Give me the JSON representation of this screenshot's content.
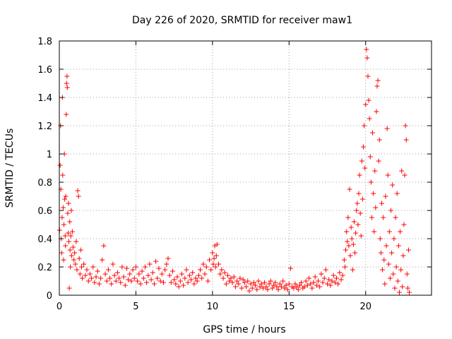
{
  "chart_data": {
    "type": "scatter",
    "title": "Day 226 of 2020, SRMTID for receiver maw1",
    "xlabel": "GPS time / hours",
    "ylabel": "SRMTID / TECUs",
    "xlim": [
      0,
      24.3
    ],
    "ylim": [
      0,
      1.8
    ],
    "xticks": [
      0,
      5,
      10,
      15,
      20
    ],
    "xtick_labels": [
      "0",
      "5",
      "10",
      "15",
      "20"
    ],
    "yticks": [
      0,
      0.2,
      0.4,
      0.6,
      0.8,
      1.0,
      1.2,
      1.4,
      1.6,
      1.8
    ],
    "ytick_labels": [
      "0",
      "0.2",
      "0.4",
      "0.6",
      "0.8",
      "1",
      "1.2",
      "1.4",
      "1.6",
      "1.8"
    ],
    "grid": true,
    "marker": "+",
    "color": "#ff0000",
    "series": [
      {
        "name": "maw1",
        "points": [
          [
            0.02,
            0.46
          ],
          [
            0.05,
            0.92
          ],
          [
            0.08,
            1.2
          ],
          [
            0.1,
            0.75
          ],
          [
            0.12,
            0.4
          ],
          [
            0.15,
            0.3
          ],
          [
            0.18,
            0.55
          ],
          [
            0.2,
            1.4
          ],
          [
            0.22,
            0.85
          ],
          [
            0.25,
            0.62
          ],
          [
            0.28,
            0.25
          ],
          [
            0.3,
            0.5
          ],
          [
            0.33,
            1.0
          ],
          [
            0.35,
            0.68
          ],
          [
            0.38,
            0.42
          ],
          [
            0.4,
            0.35
          ],
          [
            0.42,
            0.7
          ],
          [
            0.45,
            1.28
          ],
          [
            0.47,
            1.5
          ],
          [
            0.5,
            1.55
          ],
          [
            0.52,
            1.47
          ],
          [
            0.55,
            0.58
          ],
          [
            0.58,
            0.44
          ],
          [
            0.6,
            0.65
          ],
          [
            0.62,
            0.38
          ],
          [
            0.65,
            0.05
          ],
          [
            0.68,
            0.52
          ],
          [
            0.7,
            0.32
          ],
          [
            0.72,
            0.2
          ],
          [
            0.75,
            0.42
          ],
          [
            0.78,
            0.6
          ],
          [
            0.8,
            0.28
          ],
          [
            0.85,
            0.45
          ],
          [
            0.9,
            0.34
          ],
          [
            0.95,
            0.25
          ],
          [
            1.0,
            0.3
          ],
          [
            1.05,
            0.22
          ],
          [
            1.1,
            0.38
          ],
          [
            1.15,
            0.18
          ],
          [
            1.2,
            0.74
          ],
          [
            1.25,
            0.7
          ],
          [
            1.3,
            0.26
          ],
          [
            1.35,
            0.15
          ],
          [
            1.4,
            0.32
          ],
          [
            1.45,
            0.2
          ],
          [
            1.5,
            0.12
          ],
          [
            1.6,
            0.22
          ],
          [
            1.7,
            0.14
          ],
          [
            1.8,
            0.18
          ],
          [
            1.9,
            0.1
          ],
          [
            2.0,
            0.15
          ],
          [
            2.1,
            0.12
          ],
          [
            2.2,
            0.2
          ],
          [
            2.3,
            0.09
          ],
          [
            2.4,
            0.13
          ],
          [
            2.5,
            0.17
          ],
          [
            2.6,
            0.08
          ],
          [
            2.7,
            0.12
          ],
          [
            2.8,
            0.25
          ],
          [
            2.9,
            0.35
          ],
          [
            3.0,
            0.15
          ],
          [
            3.1,
            0.1
          ],
          [
            3.2,
            0.18
          ],
          [
            3.3,
            0.12
          ],
          [
            3.4,
            0.08
          ],
          [
            3.5,
            0.22
          ],
          [
            3.6,
            0.14
          ],
          [
            3.7,
            0.1
          ],
          [
            3.8,
            0.16
          ],
          [
            3.9,
            0.12
          ],
          [
            4.0,
            0.09
          ],
          [
            4.1,
            0.2
          ],
          [
            4.2,
            0.13
          ],
          [
            4.3,
            0.07
          ],
          [
            4.4,
            0.19
          ],
          [
            4.5,
            0.11
          ],
          [
            4.6,
            0.15
          ],
          [
            4.7,
            0.1
          ],
          [
            4.8,
            0.18
          ],
          [
            4.9,
            0.12
          ],
          [
            5.0,
            0.2
          ],
          [
            5.1,
            0.1
          ],
          [
            5.2,
            0.15
          ],
          [
            5.3,
            0.08
          ],
          [
            5.4,
            0.17
          ],
          [
            5.5,
            0.12
          ],
          [
            5.6,
            0.2
          ],
          [
            5.7,
            0.09
          ],
          [
            5.8,
            0.14
          ],
          [
            5.9,
            0.22
          ],
          [
            6.0,
            0.11
          ],
          [
            6.1,
            0.16
          ],
          [
            6.2,
            0.08
          ],
          [
            6.3,
            0.24
          ],
          [
            6.4,
            0.12
          ],
          [
            6.5,
            0.19
          ],
          [
            6.6,
            0.1
          ],
          [
            6.7,
            0.15
          ],
          [
            6.8,
            0.09
          ],
          [
            6.9,
            0.18
          ],
          [
            7.0,
            0.22
          ],
          [
            7.1,
            0.26
          ],
          [
            7.2,
            0.14
          ],
          [
            7.3,
            0.09
          ],
          [
            7.4,
            0.17
          ],
          [
            7.5,
            0.11
          ],
          [
            7.6,
            0.08
          ],
          [
            7.7,
            0.13
          ],
          [
            7.8,
            0.06
          ],
          [
            7.9,
            0.1
          ],
          [
            8.0,
            0.15
          ],
          [
            8.1,
            0.07
          ],
          [
            8.2,
            0.12
          ],
          [
            8.3,
            0.18
          ],
          [
            8.4,
            0.09
          ],
          [
            8.5,
            0.14
          ],
          [
            8.6,
            0.11
          ],
          [
            8.7,
            0.16
          ],
          [
            8.8,
            0.08
          ],
          [
            8.9,
            0.12
          ],
          [
            9.0,
            0.1
          ],
          [
            9.1,
            0.14
          ],
          [
            9.2,
            0.18
          ],
          [
            9.3,
            0.12
          ],
          [
            9.4,
            0.22
          ],
          [
            9.5,
            0.15
          ],
          [
            9.6,
            0.2
          ],
          [
            9.7,
            0.1
          ],
          [
            9.8,
            0.25
          ],
          [
            9.9,
            0.18
          ],
          [
            10.0,
            0.3
          ],
          [
            10.05,
            0.22
          ],
          [
            10.1,
            0.26
          ],
          [
            10.15,
            0.35
          ],
          [
            10.2,
            0.2
          ],
          [
            10.25,
            0.28
          ],
          [
            10.3,
            0.36
          ],
          [
            10.4,
            0.22
          ],
          [
            10.5,
            0.15
          ],
          [
            10.6,
            0.18
          ],
          [
            10.7,
            0.12
          ],
          [
            10.8,
            0.16
          ],
          [
            10.9,
            0.08
          ],
          [
            11.0,
            0.14
          ],
          [
            11.1,
            0.1
          ],
          [
            11.2,
            0.12
          ],
          [
            11.3,
            0.09
          ],
          [
            11.4,
            0.13
          ],
          [
            11.5,
            0.06
          ],
          [
            11.6,
            0.1
          ],
          [
            11.7,
            0.08
          ],
          [
            11.8,
            0.12
          ],
          [
            11.9,
            0.05
          ],
          [
            12.0,
            0.11
          ],
          [
            12.1,
            0.09
          ],
          [
            12.2,
            0.06
          ],
          [
            12.3,
            0.1
          ],
          [
            12.4,
            0.03
          ],
          [
            12.5,
            0.08
          ],
          [
            12.6,
            0.05
          ],
          [
            12.7,
            0.09
          ],
          [
            12.8,
            0.07
          ],
          [
            12.9,
            0.04
          ],
          [
            13.0,
            0.1
          ],
          [
            13.1,
            0.06
          ],
          [
            13.2,
            0.08
          ],
          [
            13.3,
            0.05
          ],
          [
            13.4,
            0.09
          ],
          [
            13.5,
            0.06
          ],
          [
            13.6,
            0.04
          ],
          [
            13.7,
            0.08
          ],
          [
            13.8,
            0.1
          ],
          [
            13.9,
            0.05
          ],
          [
            14.0,
            0.07
          ],
          [
            14.1,
            0.09
          ],
          [
            14.2,
            0.06
          ],
          [
            14.3,
            0.04
          ],
          [
            14.4,
            0.08
          ],
          [
            14.5,
            0.06
          ],
          [
            14.6,
            0.1
          ],
          [
            14.7,
            0.05
          ],
          [
            14.8,
            0.07
          ],
          [
            14.9,
            0.04
          ],
          [
            15.0,
            0.08
          ],
          [
            15.1,
            0.19
          ],
          [
            15.2,
            0.06
          ],
          [
            15.3,
            0.05
          ],
          [
            15.4,
            0.08
          ],
          [
            15.5,
            0.06
          ],
          [
            15.6,
            0.04
          ],
          [
            15.7,
            0.07
          ],
          [
            15.8,
            0.09
          ],
          [
            15.9,
            0.05
          ],
          [
            16.0,
            0.06
          ],
          [
            16.1,
            0.1
          ],
          [
            16.2,
            0.07
          ],
          [
            16.3,
            0.12
          ],
          [
            16.4,
            0.08
          ],
          [
            16.5,
            0.05
          ],
          [
            16.6,
            0.09
          ],
          [
            16.7,
            0.13
          ],
          [
            16.8,
            0.07
          ],
          [
            16.9,
            0.1
          ],
          [
            17.0,
            0.06
          ],
          [
            17.1,
            0.15
          ],
          [
            17.2,
            0.09
          ],
          [
            17.3,
            0.12
          ],
          [
            17.4,
            0.18
          ],
          [
            17.5,
            0.08
          ],
          [
            17.6,
            0.11
          ],
          [
            17.7,
            0.07
          ],
          [
            17.8,
            0.1
          ],
          [
            17.9,
            0.14
          ],
          [
            18.0,
            0.09
          ],
          [
            18.1,
            0.12
          ],
          [
            18.2,
            0.08
          ],
          [
            18.3,
            0.16
          ],
          [
            18.4,
            0.11
          ],
          [
            18.5,
            0.14
          ],
          [
            18.6,
            0.25
          ],
          [
            18.65,
            0.2
          ],
          [
            18.7,
            0.32
          ],
          [
            18.75,
            0.45
          ],
          [
            18.8,
            0.38
          ],
          [
            18.85,
            0.55
          ],
          [
            18.9,
            0.35
          ],
          [
            18.95,
            0.75
          ],
          [
            19.0,
            0.28
          ],
          [
            19.05,
            0.48
          ],
          [
            19.1,
            0.4
          ],
          [
            19.15,
            0.18
          ],
          [
            19.2,
            0.36
          ],
          [
            19.25,
            0.52
          ],
          [
            19.3,
            0.3
          ],
          [
            19.35,
            0.44
          ],
          [
            19.4,
            0.6
          ],
          [
            19.45,
            0.65
          ],
          [
            19.5,
            0.5
          ],
          [
            19.55,
            0.72
          ],
          [
            19.6,
            0.85
          ],
          [
            19.65,
            0.58
          ],
          [
            19.7,
            0.42
          ],
          [
            19.75,
            0.95
          ],
          [
            19.8,
            0.68
          ],
          [
            19.85,
            1.05
          ],
          [
            19.9,
            1.2
          ],
          [
            19.95,
            0.9
          ],
          [
            20.0,
            1.35
          ],
          [
            20.05,
            1.74
          ],
          [
            20.1,
            1.68
          ],
          [
            20.15,
            1.55
          ],
          [
            20.2,
            1.38
          ],
          [
            20.25,
            1.25
          ],
          [
            20.3,
            0.98
          ],
          [
            20.35,
            0.8
          ],
          [
            20.4,
            0.55
          ],
          [
            20.45,
            1.15
          ],
          [
            20.5,
            0.72
          ],
          [
            20.55,
            0.45
          ],
          [
            20.6,
            0.88
          ],
          [
            20.65,
            0.62
          ],
          [
            20.7,
            1.3
          ],
          [
            20.75,
            1.48
          ],
          [
            20.8,
            1.52
          ],
          [
            20.85,
            0.95
          ],
          [
            20.9,
            1.1
          ],
          [
            20.95,
            0.4
          ],
          [
            21.0,
            0.3
          ],
          [
            21.05,
            0.65
          ],
          [
            21.1,
            0.18
          ],
          [
            21.15,
            0.55
          ],
          [
            21.2,
            0.25
          ],
          [
            21.25,
            0.08
          ],
          [
            21.3,
            0.7
          ],
          [
            21.35,
            0.35
          ],
          [
            21.4,
            1.18
          ],
          [
            21.45,
            0.85
          ],
          [
            21.5,
            0.22
          ],
          [
            21.55,
            0.45
          ],
          [
            21.6,
            0.12
          ],
          [
            21.65,
            0.6
          ],
          [
            21.7,
            0.3
          ],
          [
            21.75,
            0.78
          ],
          [
            21.8,
            0.15
          ],
          [
            21.85,
            0.4
          ],
          [
            21.9,
            0.05
          ],
          [
            21.95,
            0.55
          ],
          [
            22.0,
            0.2
          ],
          [
            22.05,
            0.72
          ],
          [
            22.1,
            0.1
          ],
          [
            22.15,
            0.35
          ],
          [
            22.2,
            0.02
          ],
          [
            22.25,
            0.45
          ],
          [
            22.3,
            0.18
          ],
          [
            22.35,
            0.88
          ],
          [
            22.4,
            0.06
          ],
          [
            22.45,
            0.28
          ],
          [
            22.5,
            0.5
          ],
          [
            22.55,
            0.85
          ],
          [
            22.6,
            1.2
          ],
          [
            22.65,
            1.1
          ],
          [
            22.7,
            0.15
          ],
          [
            22.75,
            0.05
          ],
          [
            22.8,
            0.32
          ],
          [
            22.85,
            0.02
          ]
        ]
      }
    ]
  }
}
